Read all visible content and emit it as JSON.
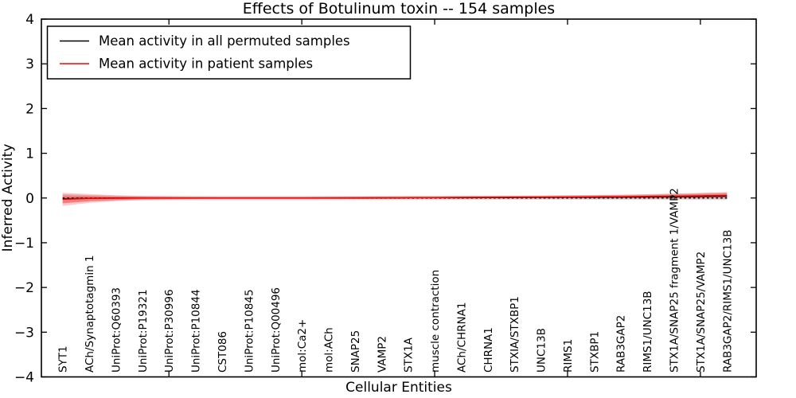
{
  "title": "Effects of Botulinum toxin -- 154 samples",
  "legend": {
    "entries": [
      {
        "label": "Mean activity in all permuted samples",
        "color": "#000000"
      },
      {
        "label": "Mean activity in patient samples",
        "color": "#ff0000"
      }
    ]
  },
  "chart_data": {
    "type": "line",
    "title": "Effects of Botulinum toxin -- 154 samples",
    "xlabel": "Cellular Entities",
    "ylabel": "Inferred Activity",
    "ylim": [
      -4,
      4
    ],
    "xlim": [
      0.2,
      27.1
    ],
    "grid": false,
    "legend_position": "upper left",
    "yticks": [
      {
        "v": 4,
        "label": "4"
      },
      {
        "v": 3,
        "label": "3"
      },
      {
        "v": 2,
        "label": "2"
      },
      {
        "v": 1,
        "label": "1"
      },
      {
        "v": 0,
        "label": "0"
      },
      {
        "v": -1,
        "label": "−1"
      },
      {
        "v": -2,
        "label": "−2"
      },
      {
        "v": -3,
        "label": "−3"
      },
      {
        "v": -4,
        "label": "−4"
      }
    ],
    "xticks_numeric": [
      5,
      10,
      15,
      20,
      25
    ],
    "categories": [
      "SYT1",
      "ACh/Synaptotagmin 1",
      "UniProt:Q60393",
      "UniProt:P19321",
      "UniProt:P30996",
      "UniProt:P10844",
      "CST086",
      "UniProt:P10845",
      "UniProt:Q00496",
      "mol:Ca2+",
      "mol:ACh",
      "SNAP25",
      "VAMP2",
      "STX1A",
      "muscle contraction",
      "ACh/CHRNA1",
      "CHRNA1",
      "STXIA/STXBP1",
      "UNC13B",
      "RIMS1",
      "STXBP1",
      "RAB3GAP2",
      "RIMS1/UNC13B",
      "STX1A/SNAP25 fragment 1/VAMP2",
      "STX1A/SNAP25/VAMP2",
      "RAB3GAP2/RIMS1/UNC13B"
    ],
    "zero_line": {
      "value": 0,
      "color": "#000000",
      "style": "dotted"
    },
    "series": [
      {
        "name": "Mean activity in all permuted samples",
        "color": "#000000",
        "style": "solid",
        "values": [
          -0.015,
          -0.005,
          0,
          0,
          0,
          0,
          0,
          0,
          0,
          0,
          0,
          0,
          0.002,
          0.003,
          0.004,
          0.005,
          0.006,
          0.008,
          0.01,
          0.012,
          0.014,
          0.016,
          0.02,
          0.025,
          0.03,
          0.038
        ]
      },
      {
        "name": "Mean activity in patient samples",
        "color": "#ff0000",
        "style": "solid",
        "values": [
          -0.03,
          -0.01,
          -0.005,
          0,
          0,
          0,
          0,
          0,
          0,
          0,
          0.002,
          0.004,
          0.006,
          0.008,
          0.01,
          0.013,
          0.016,
          0.018,
          0.02,
          0.023,
          0.026,
          0.03,
          0.035,
          0.042,
          0.05,
          0.058
        ]
      }
    ],
    "bands": [
      {
        "name": "permuted-band",
        "center_series": 0,
        "color": "#000000",
        "opacity": 0.13,
        "half_widths": [
          0.105,
          0.07,
          0.055,
          0.05,
          0.05,
          0.05,
          0.05,
          0.05,
          0.05,
          0.05,
          0.05,
          0.05,
          0.05,
          0.05,
          0.05,
          0.05,
          0.05,
          0.05,
          0.05,
          0.052,
          0.055,
          0.058,
          0.062,
          0.068,
          0.075,
          0.085
        ]
      },
      {
        "name": "patient-band-outer",
        "center_series": 1,
        "color": "#ff0000",
        "opacity": 0.22,
        "half_widths": [
          0.145,
          0.1,
          0.065,
          0.045,
          0.038,
          0.032,
          0.03,
          0.028,
          0.028,
          0.028,
          0.028,
          0.028,
          0.028,
          0.028,
          0.028,
          0.028,
          0.03,
          0.03,
          0.032,
          0.034,
          0.038,
          0.042,
          0.05,
          0.058,
          0.065,
          0.075
        ]
      },
      {
        "name": "patient-band-inner",
        "center_series": 1,
        "color": "#ff0000",
        "opacity": 0.26,
        "half_widths": [
          0.085,
          0.06,
          0.04,
          0.028,
          0.022,
          0.018,
          0.016,
          0.015,
          0.015,
          0.015,
          0.015,
          0.015,
          0.015,
          0.015,
          0.015,
          0.015,
          0.016,
          0.017,
          0.018,
          0.019,
          0.021,
          0.024,
          0.028,
          0.033,
          0.038,
          0.045
        ]
      }
    ]
  }
}
